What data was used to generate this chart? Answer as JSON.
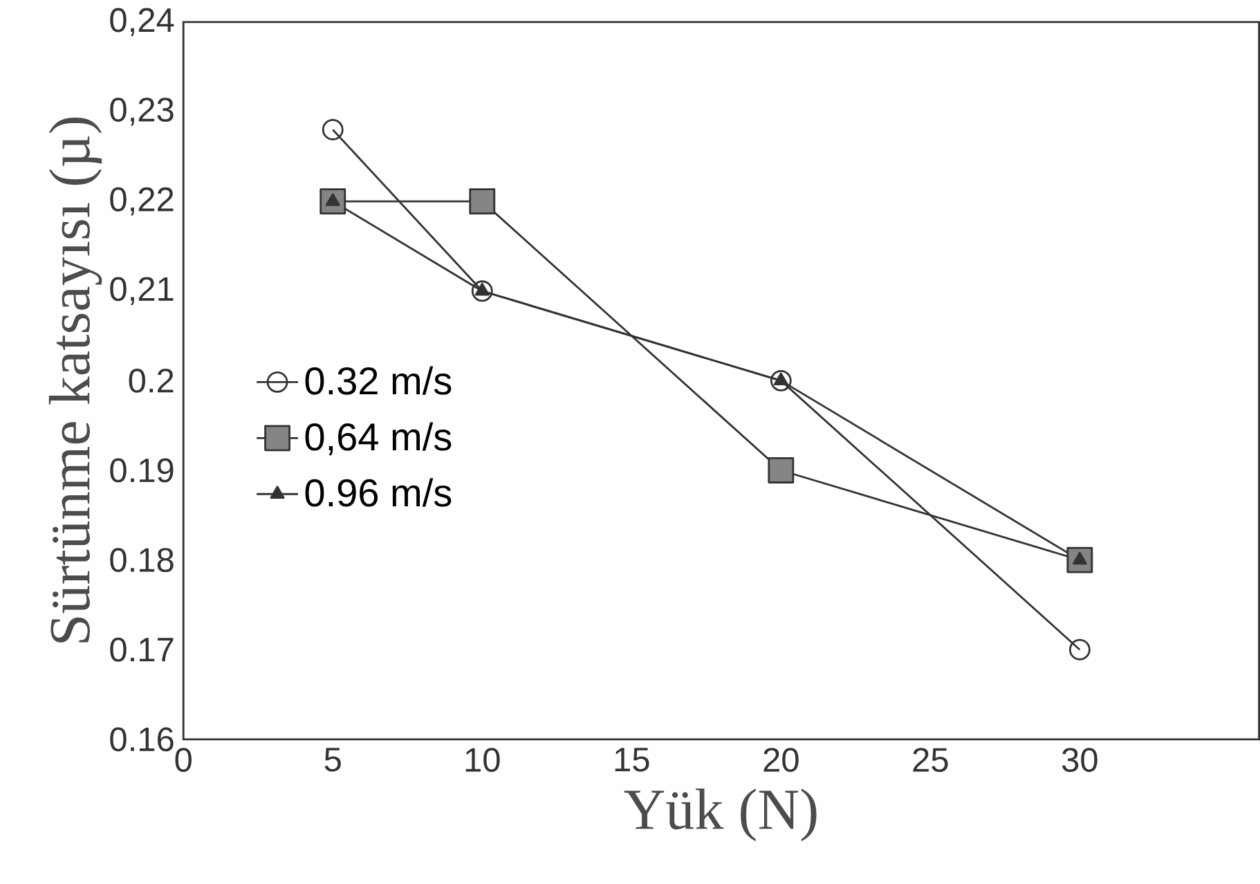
{
  "chart_data": {
    "type": "line",
    "xlabel": "Yük (N)",
    "ylabel": "Sürtünme katsayısı (µ)",
    "x": [
      5,
      10,
      20,
      30
    ],
    "series": [
      {
        "name": "0.32 m/s",
        "color": "#333333",
        "marker": "circle",
        "values": [
          0.228,
          0.21,
          0.2,
          0.17
        ]
      },
      {
        "name": "0,64 m/s",
        "color": "#333333",
        "marker": "square",
        "values": [
          0.22,
          0.22,
          0.19,
          0.18
        ]
      },
      {
        "name": "0.96 m/s",
        "color": "#333333",
        "marker": "triangle",
        "values": [
          0.22,
          0.21,
          0.2,
          0.18
        ]
      }
    ],
    "xlim": [
      0,
      36
    ],
    "xticks": [
      0,
      5,
      10,
      15,
      20,
      25,
      30
    ],
    "ylim": [
      0.16,
      0.24
    ],
    "yticks": [
      {
        "value": 0.16,
        "label": "0.16"
      },
      {
        "value": 0.17,
        "label": "0.17"
      },
      {
        "value": 0.18,
        "label": "0.18"
      },
      {
        "value": 0.19,
        "label": "0.19"
      },
      {
        "value": 0.2,
        "label": "0.2"
      },
      {
        "value": 0.21,
        "label": "0,21"
      },
      {
        "value": 0.22,
        "label": "0,22"
      },
      {
        "value": 0.23,
        "label": "0,23"
      },
      {
        "value": 0.24,
        "label": "0,24"
      }
    ],
    "grid": false,
    "legend": "left"
  }
}
